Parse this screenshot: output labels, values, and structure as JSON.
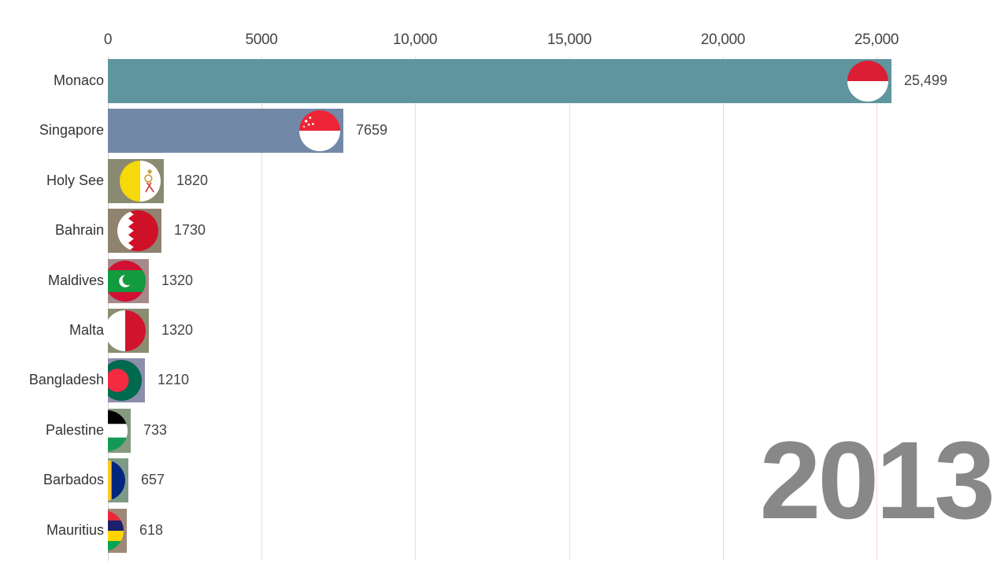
{
  "chart_data": {
    "type": "bar",
    "orientation": "horizontal",
    "title": "",
    "xlabel": "",
    "ylabel": "",
    "xlim": [
      0,
      27000
    ],
    "x_ticks": [
      0,
      5000,
      10000,
      15000,
      20000,
      25000
    ],
    "x_tick_labels": [
      "0",
      "5000",
      "10,000",
      "15,000",
      "20,000",
      "25,000"
    ],
    "grid": true,
    "year_annotation": "2013",
    "categories": [
      "Monaco",
      "Singapore",
      "Holy See",
      "Bahrain",
      "Maldives",
      "Malta",
      "Bangladesh",
      "Palestine",
      "Barbados",
      "Mauritius"
    ],
    "values": [
      25499,
      7659,
      1820,
      1730,
      1320,
      1320,
      1210,
      733,
      657,
      618
    ],
    "value_labels": [
      "25,499",
      "7659",
      "1820",
      "1730",
      "1320",
      "1320",
      "1210",
      "733",
      "657",
      "618"
    ],
    "bar_colors": [
      "#5f959e",
      "#7189a6",
      "#8a8a72",
      "#8f8370",
      "#a58a8a",
      "#8c8c72",
      "#8d8dac",
      "#869a80",
      "#7d9a88",
      "#9e8878"
    ],
    "flag_icons": [
      "monaco-flag-icon",
      "singapore-flag-icon",
      "holy-see-flag-icon",
      "bahrain-flag-icon",
      "maldives-flag-icon",
      "malta-flag-icon",
      "bangladesh-flag-icon",
      "palestine-flag-icon",
      "barbados-flag-icon",
      "mauritius-flag-icon"
    ]
  }
}
